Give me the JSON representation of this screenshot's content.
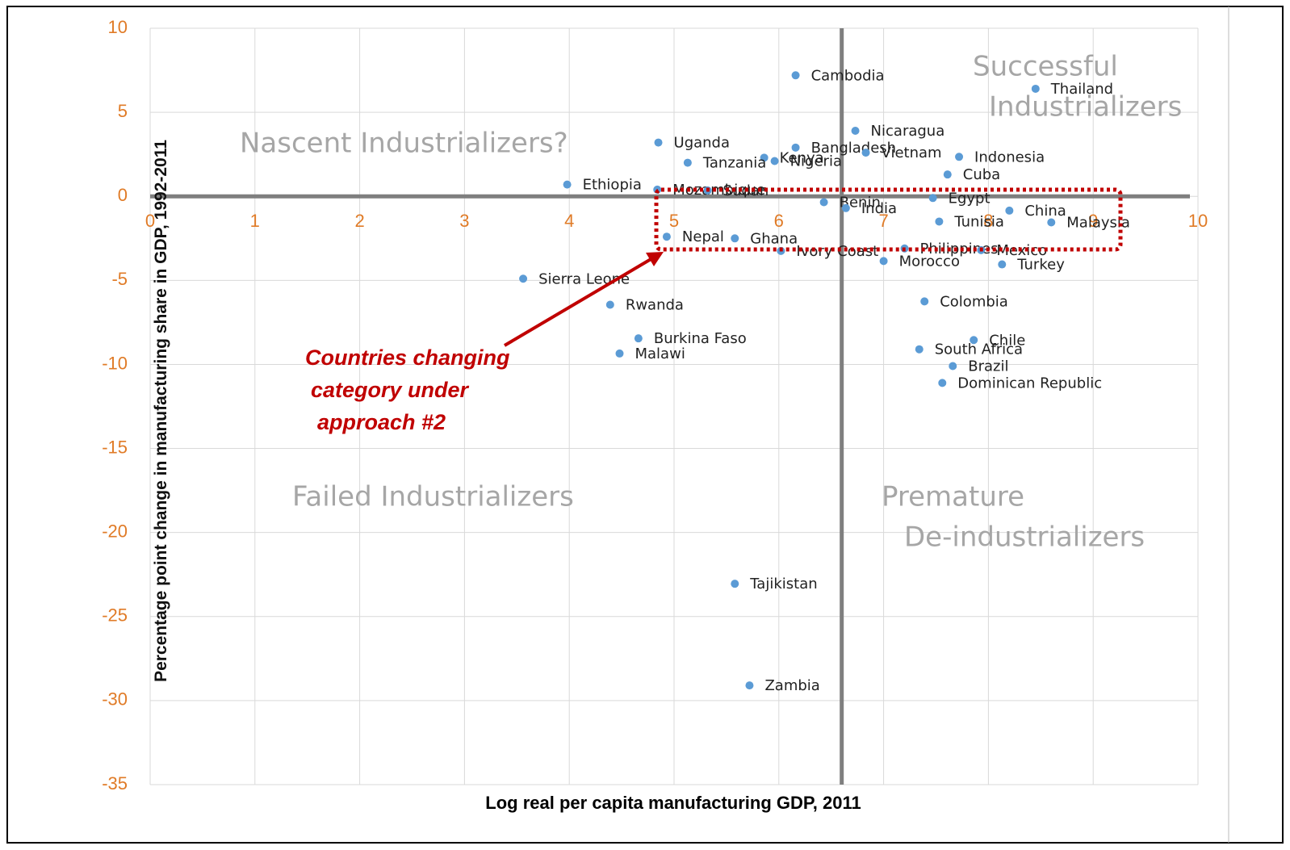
{
  "chart_data": {
    "type": "scatter",
    "x_label": "Log real per capita manufacturing GDP, 2011",
    "y_label": "Percentage point change in manufacturing share in GDP, 1992-2011",
    "quadrant_labels": [
      "Nascent Industrializers?",
      "Successful",
      "Industrializers",
      "Failed Industrializers",
      "Premature",
      "De-industrializers"
    ],
    "annotation": [
      "Countries changing",
      "category under",
      "approach #2"
    ],
    "quadrant_x": 6.6,
    "xlim": [
      0,
      10
    ],
    "xticks": [
      0,
      1,
      2,
      3,
      4,
      5,
      6,
      7,
      8,
      9,
      10
    ],
    "ylim": [
      -35,
      10
    ],
    "yticks": [
      -35,
      -30,
      -25,
      -20,
      -15,
      -10,
      -5,
      0,
      5,
      10
    ],
    "grid": true,
    "color": "#5b9bd5",
    "labels": [
      "Cambodia",
      "Thailand",
      "Nicaragua",
      "Bangladesh",
      "Vietnam",
      "Indonesia",
      "Uganda",
      "Kenya",
      "Nigeria",
      "Tanzania",
      "Cuba",
      "Ethiopia",
      "Mozambique",
      "Sudan",
      "Benin",
      "India",
      "Egypt",
      "Tunisia",
      "China",
      "Malaysia",
      "Ghana",
      "Nepal",
      "Ivory Coast",
      "Philippines",
      "Mexico",
      "Morocco",
      "Turkey",
      "Sierra Leone",
      "Rwanda",
      "Colombia",
      "Burkina Faso",
      "Chile",
      "Malawi",
      "South Africa",
      "Brazil",
      "Dominican Republic",
      "Tajikistan",
      "Zambia"
    ],
    "x": [
      6.16,
      8.45,
      6.73,
      6.16,
      6.83,
      7.72,
      4.85,
      5.86,
      5.96,
      5.13,
      7.61,
      3.98,
      4.84,
      5.32,
      6.43,
      6.64,
      7.47,
      7.53,
      8.2,
      8.6,
      5.58,
      4.93,
      6.02,
      7.2,
      7.93,
      7.0,
      8.13,
      3.56,
      4.39,
      7.39,
      4.66,
      7.86,
      4.48,
      7.34,
      7.66,
      7.56,
      5.58,
      5.72
    ],
    "values": [
      7.2,
      6.4,
      3.9,
      2.9,
      2.6,
      2.35,
      3.2,
      2.3,
      2.1,
      2.0,
      1.3,
      0.7,
      0.4,
      0.35,
      -0.35,
      -0.7,
      -0.1,
      -1.5,
      -0.85,
      -1.55,
      -2.5,
      -2.4,
      -3.25,
      -3.1,
      -3.2,
      -3.85,
      -4.05,
      -4.9,
      -6.45,
      -6.25,
      -8.45,
      -8.55,
      -9.35,
      -9.1,
      -10.1,
      -11.1,
      -23.05,
      -29.1
    ]
  }
}
